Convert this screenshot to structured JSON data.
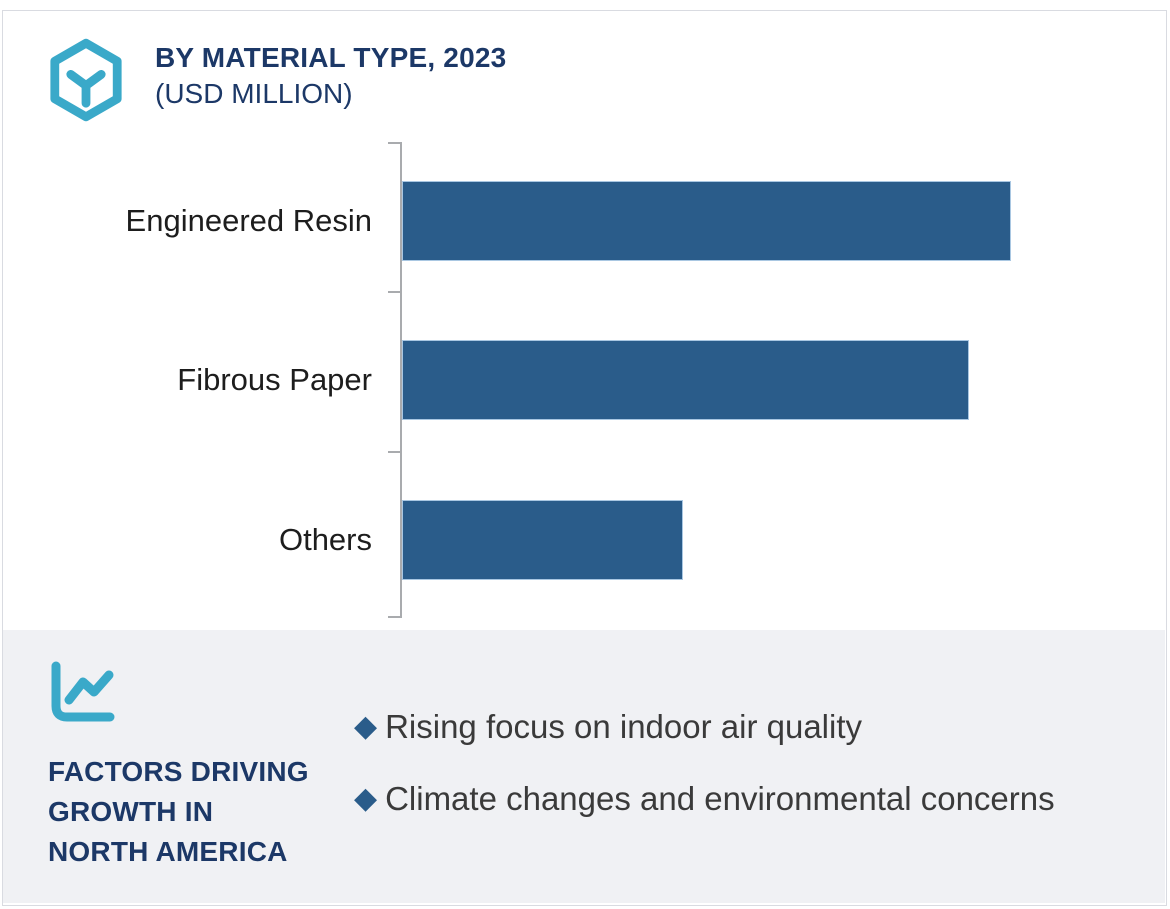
{
  "header": {
    "title": "BY MATERIAL TYPE, 2023",
    "subtitle": "(USD MILLION)",
    "logo_icon": "hexagon-y-logo",
    "title_color": "#1c3867",
    "logo_color": "#3aa9c9"
  },
  "chart_data": {
    "type": "bar",
    "orientation": "horizontal",
    "title": "BY MATERIAL TYPE, 2023 (USD MILLION)",
    "unit": "USD Million",
    "categories": [
      "Engineered Resin",
      "Fibrous Paper",
      "Others"
    ],
    "values": [
      100,
      93,
      46
    ],
    "values_are": "relative bar length, % of longest bar (no numeric axis labels shown)",
    "value_labels_shown": false,
    "grid": false,
    "bar_color": "#2a5c8a",
    "bar_edge_color": "#a9c7e2",
    "axis_color": "#a9abae"
  },
  "factors_panel": {
    "icon": "line-chart-icon",
    "icon_color": "#3aa9c9",
    "heading_lines": [
      "FACTORS DRIVING",
      "GROWTH IN",
      "NORTH AMERICA"
    ],
    "bullet_marker": "◆",
    "bullet_marker_color": "#2a5c8a",
    "bullets": [
      "Rising focus on indoor air quality",
      "Climate changes and environmental concerns"
    ],
    "panel_color": "#f0f1f4"
  }
}
